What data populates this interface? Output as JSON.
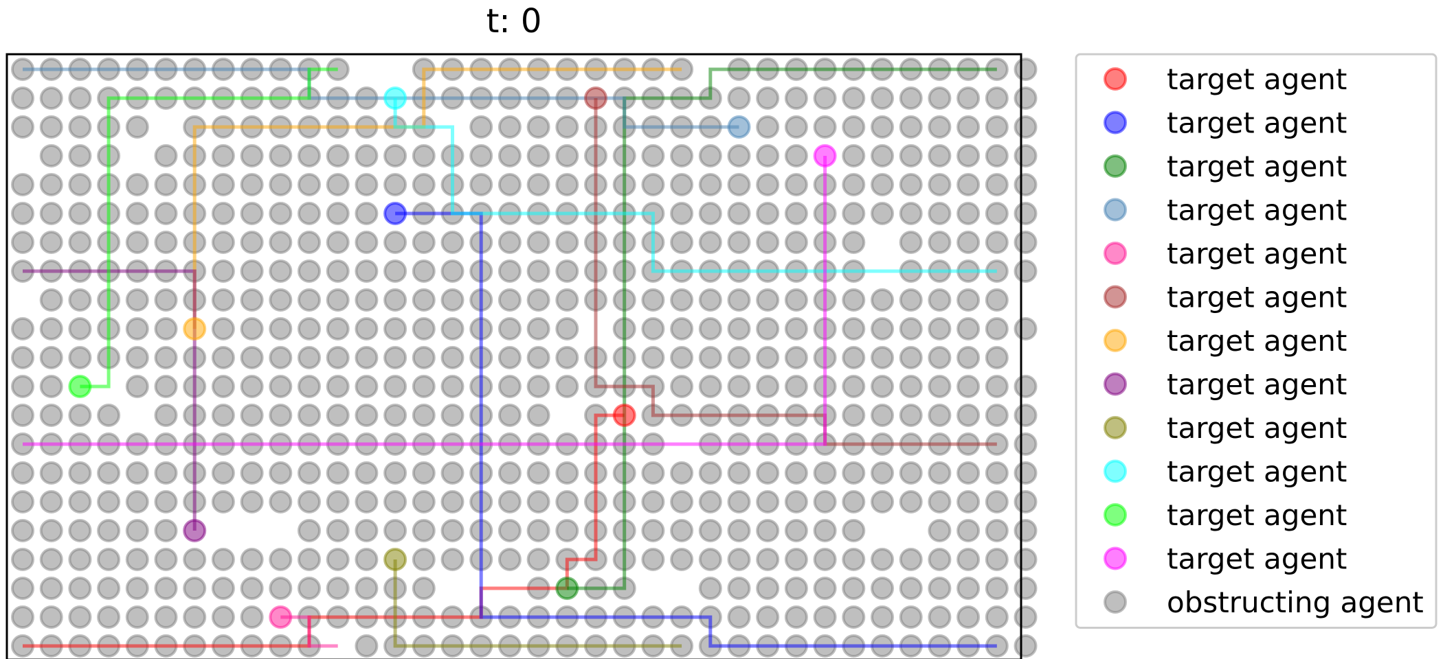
{
  "chart_data": {
    "type": "scatter",
    "title": "t: 0",
    "grid_size": [
      36,
      21
    ],
    "legend_position": "right",
    "legend": [
      {
        "label": "target agent",
        "color": "#ff0000"
      },
      {
        "label": "target agent",
        "color": "#0000ff"
      },
      {
        "label": "target agent",
        "color": "#008000"
      },
      {
        "label": "target agent",
        "color": "#4682b4"
      },
      {
        "label": "target agent",
        "color": "#ff1493"
      },
      {
        "label": "target agent",
        "color": "#a52a2a"
      },
      {
        "label": "target agent",
        "color": "#ffa500"
      },
      {
        "label": "target agent",
        "color": "#800080"
      },
      {
        "label": "target agent",
        "color": "#808000"
      },
      {
        "label": "target agent",
        "color": "#00ffff"
      },
      {
        "label": "target agent",
        "color": "#00ff00"
      },
      {
        "label": "target agent",
        "color": "#ff00ff"
      },
      {
        "label": "obstructing agent",
        "color": "#808080"
      }
    ],
    "empty_cells": [
      [
        12,
        0
      ],
      [
        13,
        0
      ],
      [
        24,
        0
      ],
      [
        0,
        3
      ],
      [
        4,
        3
      ],
      [
        5,
        2
      ],
      [
        15,
        2
      ],
      [
        0,
        8
      ],
      [
        35,
        8
      ],
      [
        20,
        9
      ],
      [
        35,
        10
      ],
      [
        3,
        11
      ],
      [
        4,
        12
      ],
      [
        19,
        12
      ],
      [
        23,
        13
      ],
      [
        7,
        16
      ],
      [
        8,
        16
      ],
      [
        9,
        16
      ],
      [
        30,
        16
      ],
      [
        31,
        16
      ],
      [
        15,
        18
      ],
      [
        16,
        18
      ],
      [
        17,
        18
      ],
      [
        22,
        18
      ],
      [
        23,
        18
      ],
      [
        11,
        20
      ],
      [
        30,
        6
      ],
      [
        30,
        7
      ]
    ],
    "targets": [
      {
        "start": [
          21,
          12
        ],
        "path": [
          [
            21,
            12
          ],
          [
            20,
            12
          ],
          [
            20,
            17
          ],
          [
            19,
            17
          ],
          [
            19,
            18
          ],
          [
            16,
            18
          ],
          [
            16,
            19
          ],
          [
            10,
            19
          ],
          [
            10,
            20
          ],
          [
            0,
            20
          ]
        ]
      },
      {
        "start": [
          13,
          5
        ],
        "path": [
          [
            13,
            5
          ],
          [
            16,
            5
          ],
          [
            16,
            19
          ],
          [
            24,
            19
          ],
          [
            24,
            20
          ],
          [
            34,
            20
          ]
        ]
      },
      {
        "start": [
          19,
          18
        ],
        "path": [
          [
            19,
            18
          ],
          [
            21,
            18
          ],
          [
            21,
            1
          ],
          [
            24,
            1
          ],
          [
            24,
            0
          ],
          [
            34,
            0
          ]
        ]
      },
      {
        "start": [
          25,
          2
        ],
        "path": [
          [
            25,
            2
          ],
          [
            21,
            2
          ],
          [
            21,
            1
          ],
          [
            10,
            1
          ],
          [
            10,
            0
          ],
          [
            0,
            0
          ]
        ]
      },
      {
        "start": [
          9,
          19
        ],
        "path": [
          [
            9,
            19
          ],
          [
            10,
            19
          ],
          [
            10,
            20
          ],
          [
            11,
            20
          ]
        ]
      },
      {
        "start": [
          20,
          1
        ],
        "path": [
          [
            20,
            1
          ],
          [
            20,
            11
          ],
          [
            22,
            11
          ],
          [
            22,
            12
          ],
          [
            28,
            12
          ],
          [
            28,
            13
          ],
          [
            34,
            13
          ]
        ]
      },
      {
        "start": [
          6,
          9
        ],
        "path": [
          [
            6,
            9
          ],
          [
            6,
            2
          ],
          [
            14,
            2
          ],
          [
            14,
            0
          ],
          [
            23,
            0
          ]
        ]
      },
      {
        "start": [
          6,
          16
        ],
        "path": [
          [
            6,
            16
          ],
          [
            6,
            7
          ],
          [
            0,
            7
          ]
        ]
      },
      {
        "start": [
          13,
          17
        ],
        "path": [
          [
            13,
            17
          ],
          [
            13,
            20
          ],
          [
            23,
            20
          ]
        ]
      },
      {
        "start": [
          13,
          1
        ],
        "path": [
          [
            13,
            1
          ],
          [
            13,
            2
          ],
          [
            15,
            2
          ],
          [
            15,
            5
          ],
          [
            22,
            5
          ],
          [
            22,
            7
          ],
          [
            34,
            7
          ]
        ]
      },
      {
        "start": [
          2,
          11
        ],
        "path": [
          [
            2,
            11
          ],
          [
            3,
            11
          ],
          [
            3,
            1
          ],
          [
            10,
            1
          ],
          [
            10,
            0
          ],
          [
            11,
            0
          ]
        ]
      },
      {
        "start": [
          28,
          3
        ],
        "path": [
          [
            28,
            3
          ],
          [
            28,
            13
          ],
          [
            0,
            13
          ]
        ]
      }
    ]
  }
}
